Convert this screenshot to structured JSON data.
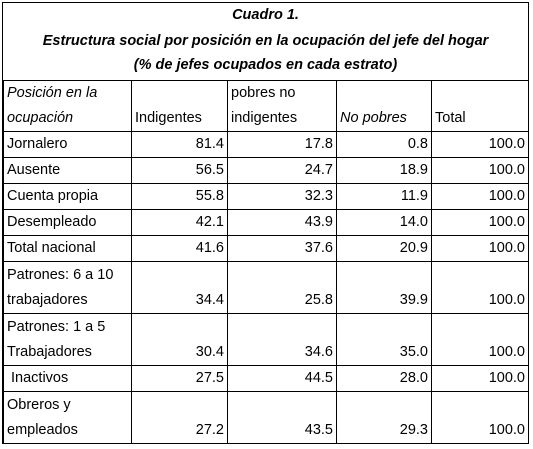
{
  "title": "Cuadro 1.",
  "subtitle": "Estructura social por posición en la ocupación del jefe del hogar",
  "note": "(% de jefes ocupados en cada estrato)",
  "headers": {
    "posicion_line1": "Posición en la",
    "posicion_line2": "ocupación",
    "indigentes": "Indigentes",
    "pobres_line1": "pobres no",
    "pobres_line2": "indigentes",
    "no_pobres": "No pobres",
    "total": "Total"
  },
  "rows": [
    {
      "label1": "Jornalero",
      "label2": "",
      "indigentes": "81.4",
      "pobres_no_indigentes": "17.8",
      "no_pobres": "0.8",
      "total": "100.0"
    },
    {
      "label1": "Ausente",
      "label2": "",
      "indigentes": "56.5",
      "pobres_no_indigentes": "24.7",
      "no_pobres": "18.9",
      "total": "100.0"
    },
    {
      "label1": "Cuenta propia",
      "label2": "",
      "indigentes": "55.8",
      "pobres_no_indigentes": "32.3",
      "no_pobres": "11.9",
      "total": "100.0"
    },
    {
      "label1": "Desempleado",
      "label2": "",
      "indigentes": "42.1",
      "pobres_no_indigentes": "43.9",
      "no_pobres": "14.0",
      "total": "100.0"
    },
    {
      "label1": "Total nacional",
      "label2": "",
      "indigentes": "41.6",
      "pobres_no_indigentes": "37.6",
      "no_pobres": "20.9",
      "total": "100.0"
    },
    {
      "label1": "Patrones: 6 a 10",
      "label2": "trabajadores",
      "indigentes": "34.4",
      "pobres_no_indigentes": "25.8",
      "no_pobres": "39.9",
      "total": "100.0"
    },
    {
      "label1": "Patrones: 1 a 5",
      "label2": "Trabajadores",
      "indigentes": "30.4",
      "pobres_no_indigentes": "34.6",
      "no_pobres": "35.0",
      "total": "100.0"
    },
    {
      "label1": " Inactivos",
      "label2": "",
      "indigentes": "27.5",
      "pobres_no_indigentes": "44.5",
      "no_pobres": "28.0",
      "total": "100.0"
    },
    {
      "label1": "Obreros y",
      "label2": "empleados",
      "indigentes": "27.2",
      "pobres_no_indigentes": "43.5",
      "no_pobres": "29.3",
      "total": "100.0"
    }
  ]
}
